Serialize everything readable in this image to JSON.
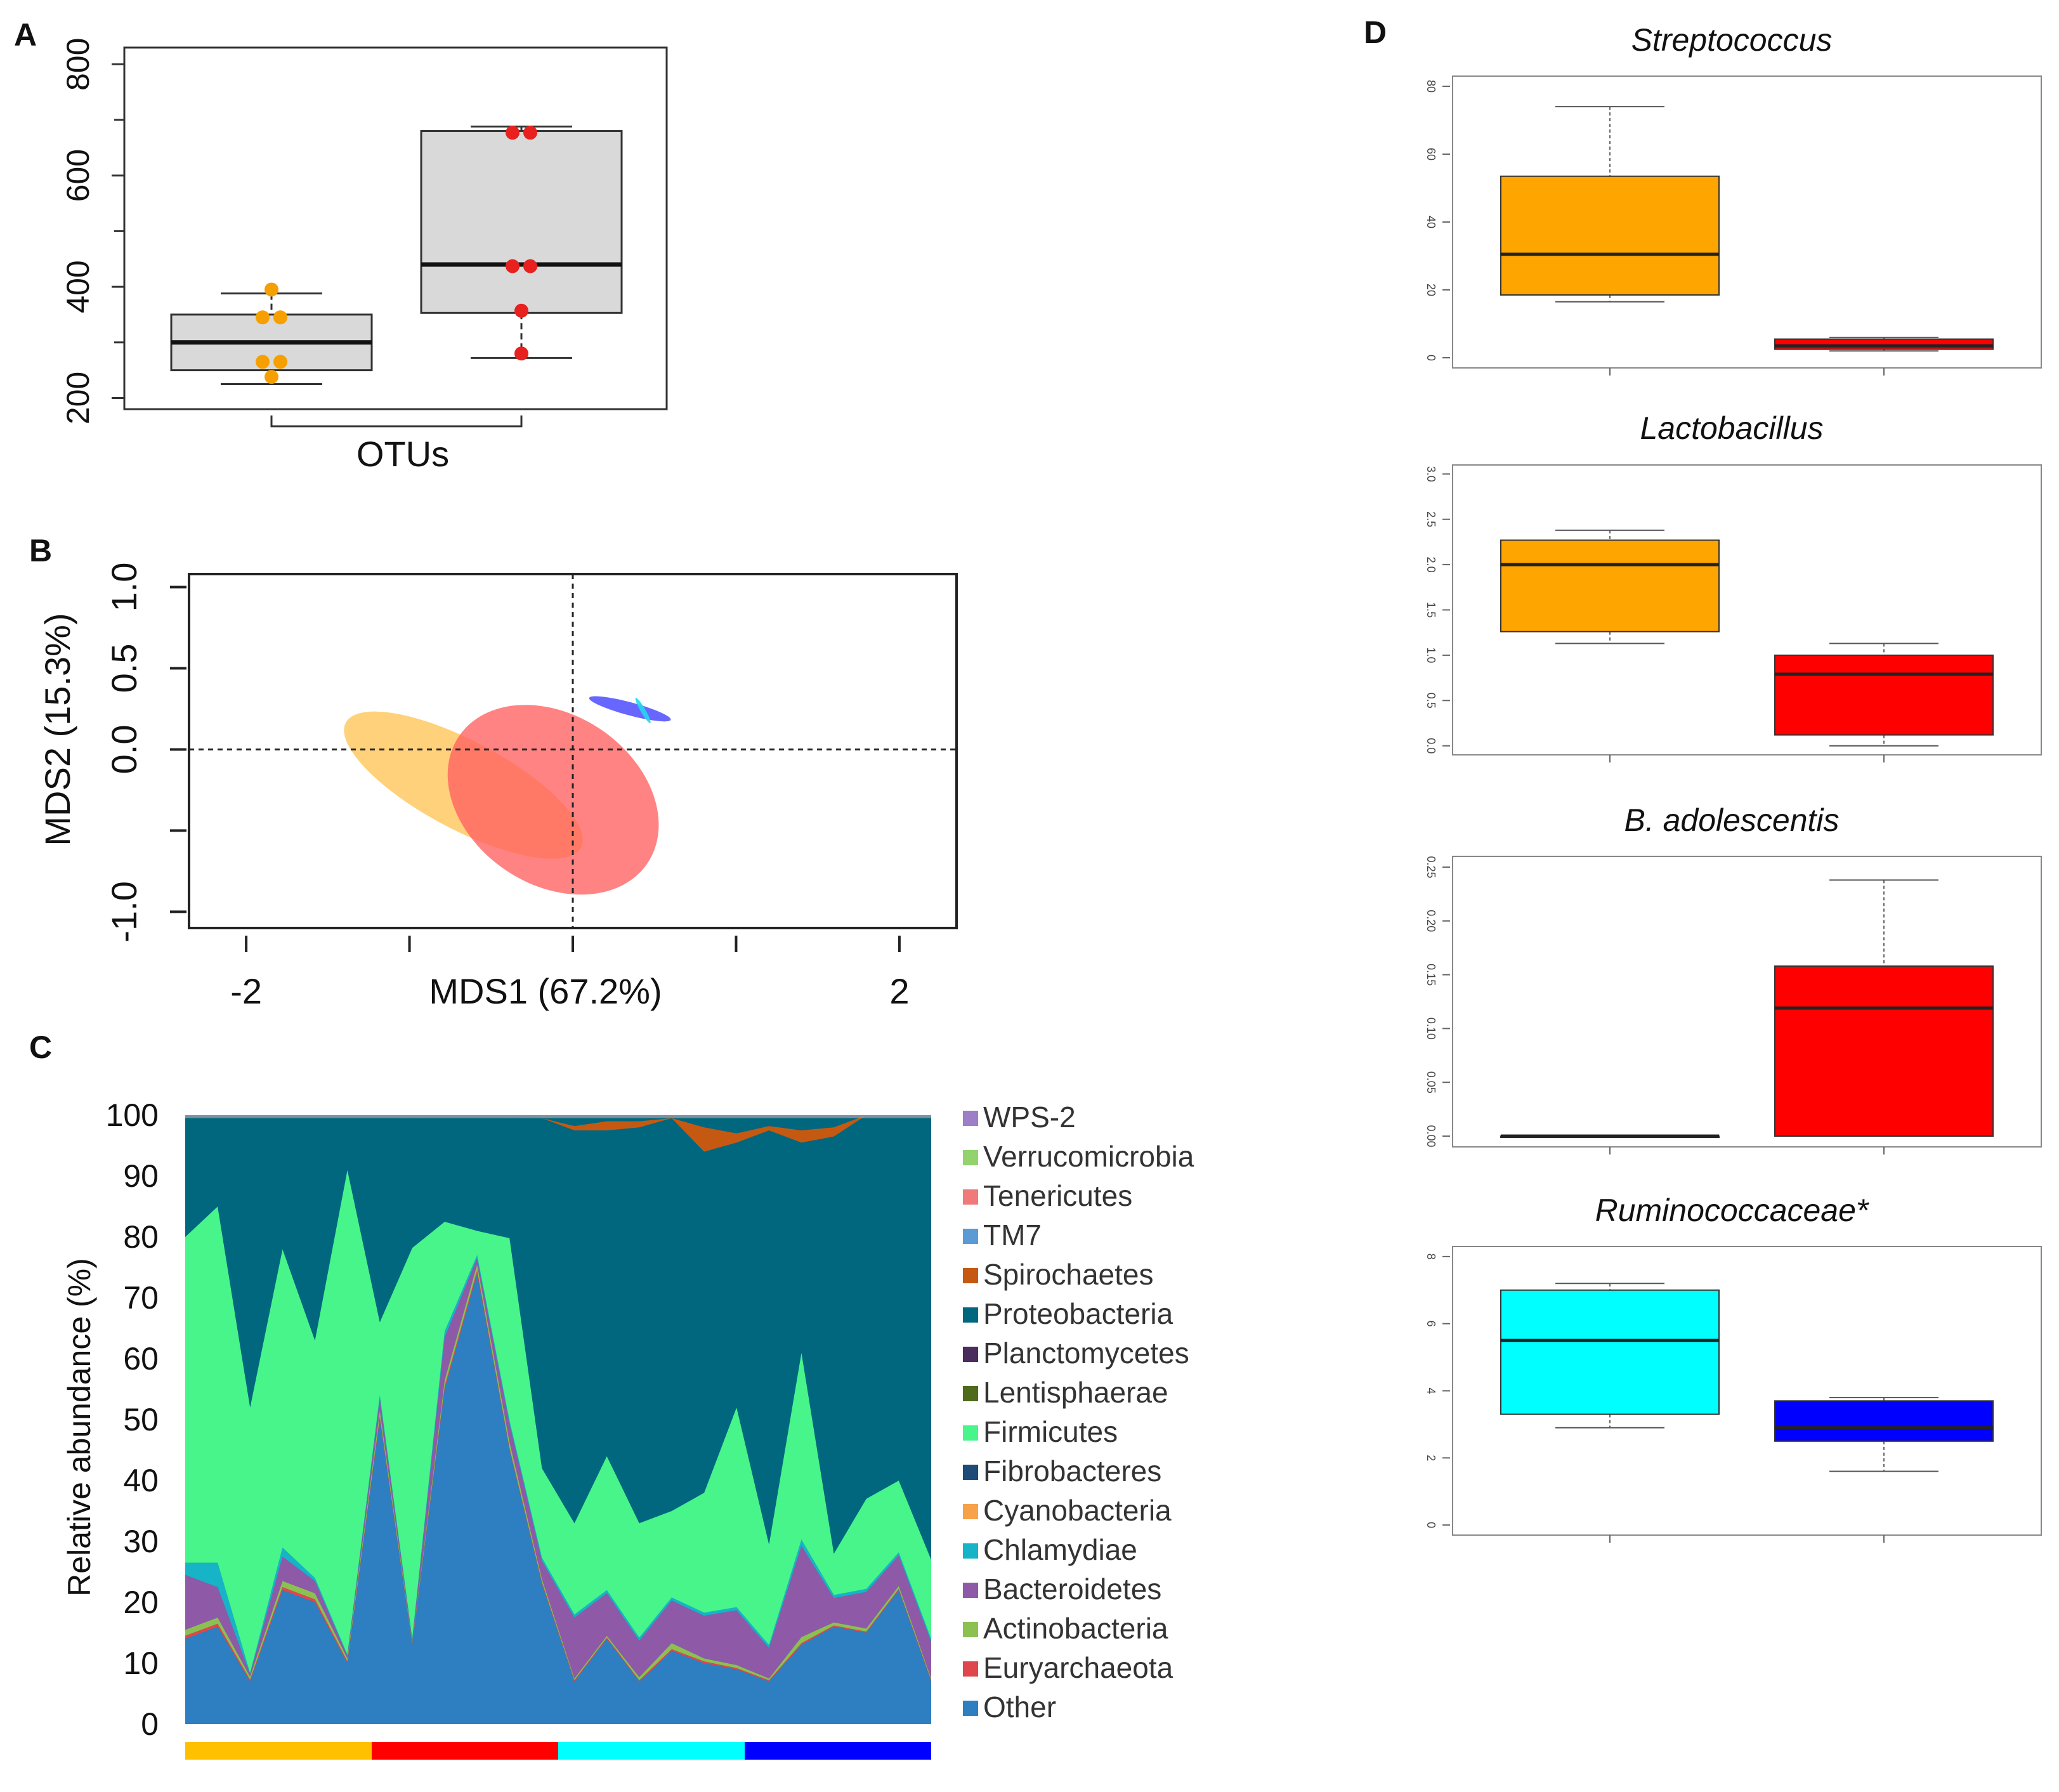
{
  "panel_labels": {
    "a": "A",
    "b": "B",
    "c": "C",
    "d": "D"
  },
  "chart_data": [
    {
      "id": "A",
      "type": "box",
      "xlabel": "OTUs",
      "yticks": [
        "200",
        "400",
        "600",
        "800"
      ],
      "ylim": [
        180,
        830
      ],
      "colors": {
        "box_fill": "#d9d9d9",
        "group1_points": "#f5a000",
        "group2_points": "#e8201e"
      },
      "groups": [
        {
          "name": "group1",
          "min": 225,
          "q1": 250,
          "median": 300,
          "q3": 350,
          "max": 388,
          "points": [
            395,
            345,
            345,
            265,
            265,
            238
          ]
        },
        {
          "name": "group2",
          "min": 272,
          "q1": 353,
          "median": 440,
          "q3": 680,
          "max": 688,
          "points": [
            677,
            677,
            437,
            437,
            357,
            280
          ]
        }
      ]
    },
    {
      "id": "B",
      "type": "ordination",
      "xlabel": "MDS1 (67.2%)",
      "ylabel": "MDS2 (15.3%)",
      "xticks": [
        "-2",
        "2"
      ],
      "yticks": [
        "-1.0",
        "0.0",
        "0.5",
        "1.0"
      ],
      "xlim": [
        -2.35,
        2.35
      ],
      "ylim": [
        -1.1,
        1.08
      ],
      "ellipses": [
        {
          "group": "orange",
          "color": "#ffc14d",
          "opacity": 0.75,
          "cx": -0.67,
          "cy": -0.22,
          "rx": 0.27,
          "ry": 0.82,
          "angle_deg": 62
        },
        {
          "group": "red",
          "color": "#ff6060",
          "opacity": 0.78,
          "cx": -0.12,
          "cy": -0.31,
          "rx": 0.52,
          "ry": 0.7,
          "angle_deg": 56
        },
        {
          "group": "blue",
          "color": "#4c4cff",
          "opacity": 0.85,
          "cx": 0.35,
          "cy": 0.25,
          "rx": 0.04,
          "ry": 0.26,
          "angle_deg": 75
        },
        {
          "group": "cyan",
          "color": "#27d6f0",
          "opacity": 0.9,
          "cx": 0.43,
          "cy": 0.24,
          "rx": 0.015,
          "ry": 0.09,
          "angle_deg": 30
        }
      ]
    },
    {
      "id": "C",
      "type": "area",
      "ylabel": "Relative abundance (%)",
      "yticks": [
        "0",
        "10",
        "20",
        "30",
        "40",
        "50",
        "60",
        "70",
        "80",
        "90",
        "100"
      ],
      "samples": 24,
      "legend": [
        "WPS-2",
        "Verrucomicrobia",
        "Tenericutes",
        "TM7",
        "Spirochaetes",
        "Proteobacteria",
        "Planctomycetes",
        "Lentisphaerae",
        "Firmicutes",
        "Fibrobacteres",
        "Cyanobacteria",
        "Chlamydiae",
        "Bacteroidetes",
        "Actinobacteria",
        "Euryarchaeota",
        "Other"
      ],
      "legend_colors": {
        "WPS-2": "#9d7fc7",
        "Verrucomicrobia": "#92d36e",
        "Tenericutes": "#f07a7a",
        "TM7": "#5b9bd5",
        "Spirochaetes": "#c65911",
        "Proteobacteria": "#00677f",
        "Planctomycetes": "#4b2c5e",
        "Lentisphaerae": "#4e6b1c",
        "Firmicutes": "#47f58a",
        "Fibrobacteres": "#1e4b78",
        "Cyanobacteria": "#f7a24a",
        "Chlamydiae": "#17b4c8",
        "Bacteroidetes": "#8e5aa8",
        "Actinobacteria": "#8cc152",
        "Euryarchaeota": "#e0474c",
        "Other": "#2e7fc1"
      },
      "stack_order": [
        "Other",
        "Euryarchaeota",
        "Actinobacteria",
        "Bacteroidetes",
        "Chlamydiae",
        "Firmicutes",
        "Proteobacteria",
        "Spirochaetes"
      ],
      "series": [
        {
          "name": "Other",
          "values": [
            14,
            16,
            7,
            22,
            20,
            10,
            50,
            13,
            55,
            74,
            45,
            23,
            7,
            14,
            7,
            12,
            10,
            9,
            7,
            13,
            16,
            15,
            22,
            7
          ]
        },
        {
          "name": "Euryarchaeota",
          "values": [
            0.5,
            0.5,
            0.3,
            0.5,
            0.5,
            0.3,
            0.5,
            0.2,
            0.5,
            0.5,
            0.3,
            0.3,
            0.2,
            0.2,
            0.2,
            0.3,
            0.3,
            0.2,
            0.2,
            0.3,
            0.2,
            0.2,
            0.2,
            0.2
          ]
        },
        {
          "name": "Actinobacteria",
          "values": [
            1,
            1,
            0.5,
            1,
            1,
            0.5,
            1,
            0.3,
            1,
            1,
            1,
            0.5,
            0.3,
            0.3,
            0.5,
            1,
            0.5,
            0.5,
            0.3,
            1,
            0.5,
            0.5,
            0.5,
            0.3
          ]
        },
        {
          "name": "Bacteroidetes",
          "values": [
            9,
            5,
            0.4,
            4,
            2,
            0.4,
            2,
            0.3,
            7,
            1,
            3,
            3,
            10,
            7,
            6,
            7,
            7,
            9,
            5,
            15,
            4,
            6,
            5,
            6
          ]
        },
        {
          "name": "Chlamydiae",
          "values": [
            2,
            4,
            0.2,
            1.5,
            0.5,
            0.2,
            0.5,
            0.2,
            1,
            0.5,
            0.5,
            0.5,
            0.5,
            0.5,
            0.5,
            0.5,
            0.5,
            0.5,
            0.5,
            1,
            0.5,
            0.5,
            0.5,
            0.5
          ]
        },
        {
          "name": "Firmicutes",
          "values": [
            53.5,
            58.5,
            43.6,
            49,
            39,
            79.6,
            12,
            64.2,
            18,
            4,
            30,
            14.7,
            15,
            22,
            18.8,
            14.2,
            19.7,
            32.8,
            16.5,
            30.7,
            6.8,
            14.8,
            11.8,
            13
          ]
        },
        {
          "name": "Proteobacteria",
          "values": [
            19.8,
            14.8,
            49,
            21.8,
            36.8,
            8.7,
            33.8,
            21,
            17,
            18.7,
            19.5,
            57.5,
            64.5,
            53.5,
            65,
            64.5,
            56,
            43.5,
            68,
            34.5,
            68.5,
            63.5,
            59.5,
            72.5
          ]
        },
        {
          "name": "Spirochaetes",
          "values": [
            0,
            0,
            0,
            0,
            0,
            0,
            0,
            0,
            0,
            0,
            0,
            0,
            0.7,
            1.5,
            1,
            0,
            4,
            1.5,
            0.7,
            2,
            1.5,
            0,
            0,
            0
          ]
        }
      ],
      "group_bar_colors": [
        "#ffc000",
        "#ff0000",
        "#00ffff",
        "#0000ff"
      ]
    },
    {
      "id": "D",
      "type": "box",
      "panels": [
        {
          "title": "Streptococcus",
          "yticks": [
            "0",
            "20",
            "40",
            "60",
            "80"
          ],
          "ylim": [
            -3,
            83
          ],
          "boxes": [
            {
              "color": "#ffa500",
              "min": 16.5,
              "q1": 18.5,
              "median": 30.5,
              "q3": 53.5,
              "max": 74
            },
            {
              "color": "#ff0000",
              "min": 2,
              "q1": 2.5,
              "median": 3.5,
              "q3": 5.5,
              "max": 6
            }
          ]
        },
        {
          "title": "Lactobacillus",
          "yticks": [
            "0.0",
            "0.5",
            "1.0",
            "1.5",
            "2.0",
            "2.5",
            "3.0"
          ],
          "ylim": [
            -0.1,
            3.1
          ],
          "boxes": [
            {
              "color": "#ffa500",
              "min": 1.13,
              "q1": 1.26,
              "median": 2.0,
              "q3": 2.27,
              "max": 2.38
            },
            {
              "color": "#ff0000",
              "min": 0.0,
              "q1": 0.12,
              "median": 0.79,
              "q3": 1.0,
              "max": 1.13
            }
          ]
        },
        {
          "title": "B. adolescentis",
          "yticks": [
            "0.00",
            "0.05",
            "0.10",
            "0.15",
            "0.20",
            "0.25"
          ],
          "ylim": [
            -0.01,
            0.26
          ],
          "boxes": [
            {
              "color": "#ffa500",
              "min": 0.0,
              "q1": 0.0,
              "median": 0.0,
              "q3": 0.0,
              "max": 0.0
            },
            {
              "color": "#ff0000",
              "min": 0.0,
              "q1": 0.0,
              "median": 0.119,
              "q3": 0.158,
              "max": 0.238
            }
          ]
        },
        {
          "title": "Ruminococcaceae*",
          "yticks": [
            "0",
            "2",
            "4",
            "6",
            "8"
          ],
          "ylim": [
            -0.3,
            8.3
          ],
          "boxes": [
            {
              "color": "#00ffff",
              "min": 2.9,
              "q1": 3.3,
              "median": 5.5,
              "q3": 7.0,
              "max": 7.2
            },
            {
              "color": "#0000ff",
              "min": 1.6,
              "q1": 2.5,
              "median": 2.9,
              "q3": 3.7,
              "max": 3.8
            }
          ]
        }
      ]
    }
  ]
}
